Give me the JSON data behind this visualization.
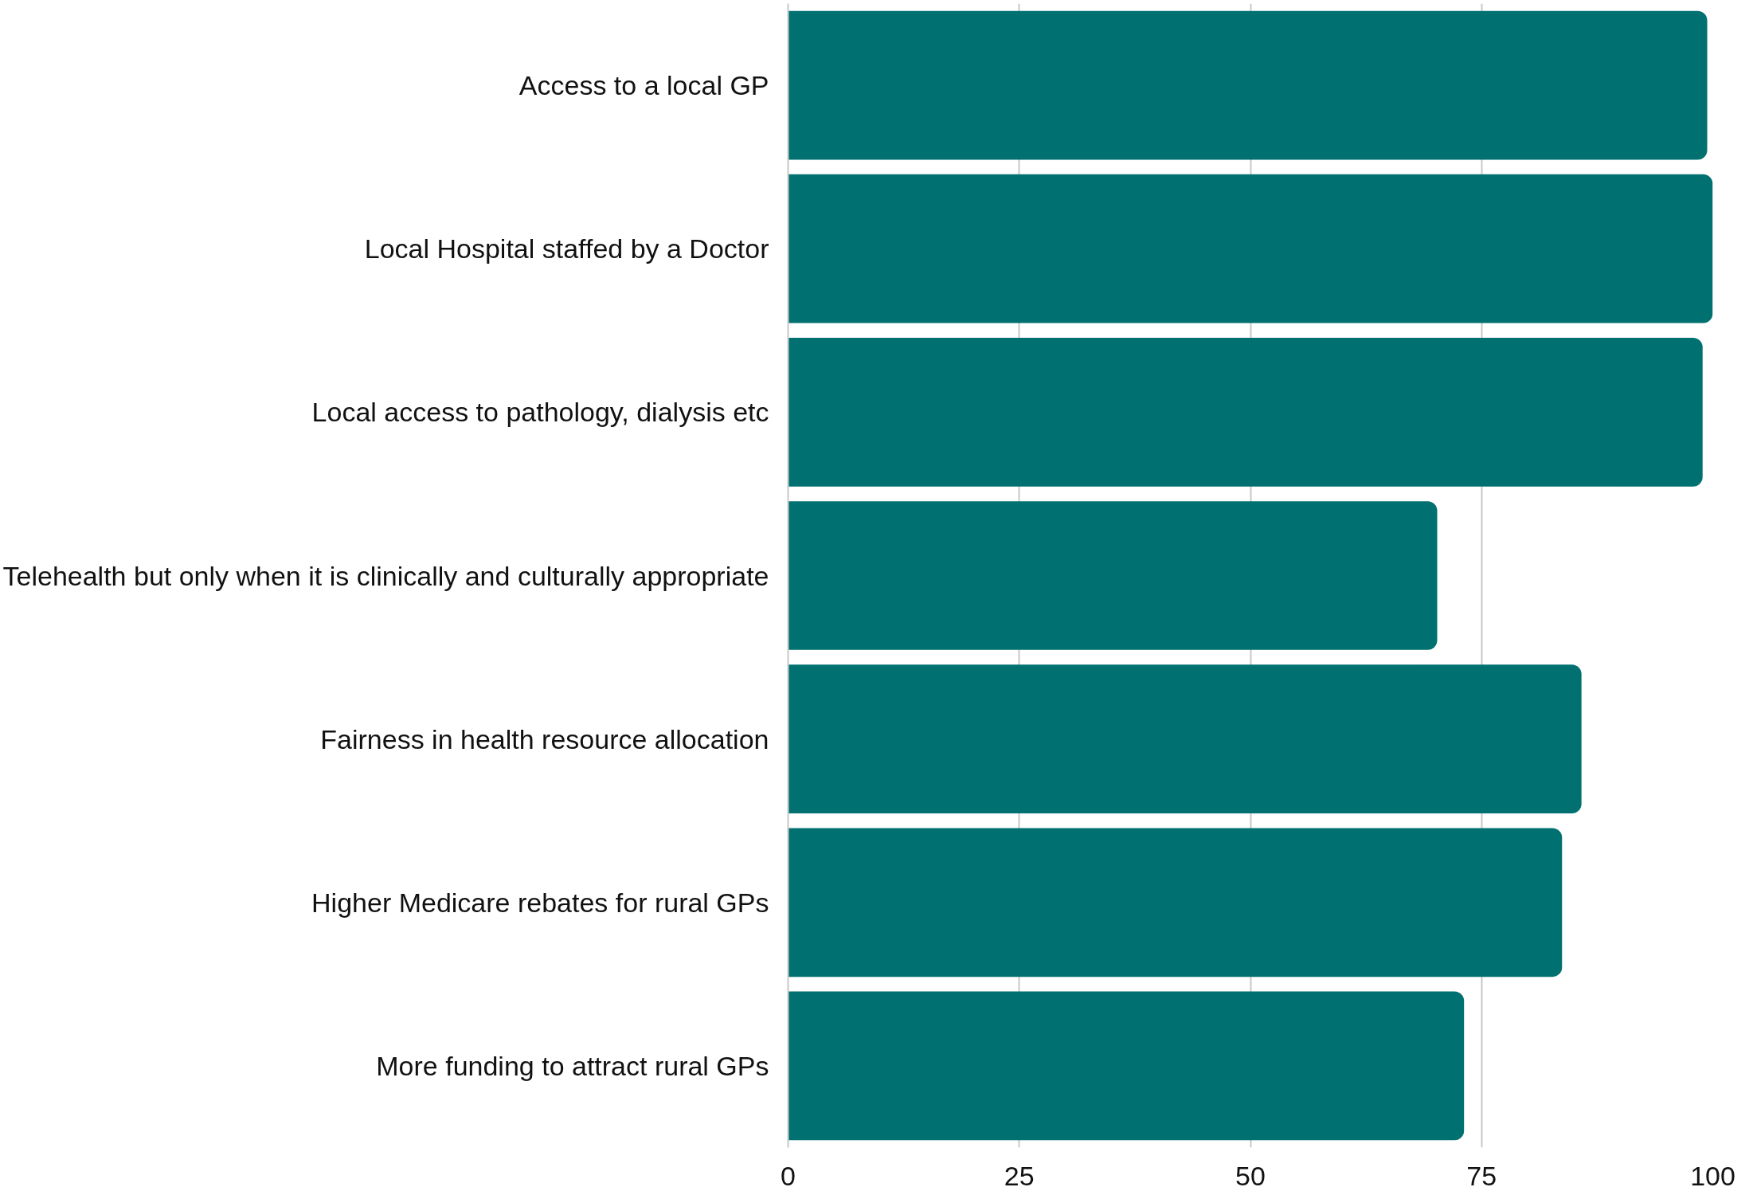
{
  "chart_data": {
    "type": "bar",
    "orientation": "horizontal",
    "categories": [
      "Access to a local GP",
      "Local Hospital staffed by a Doctor",
      "Local access to pathology, dialysis etc",
      "Telehealth but only when it is clinically and culturally appropriate",
      "Fairness in health resource allocation",
      "Higher Medicare rebates for rural GPs",
      "More funding to attract rural GPs"
    ],
    "values": [
      99.4,
      100,
      98.9,
      70.2,
      85.8,
      83.7,
      73.1
    ],
    "color": "#007070",
    "xlim": [
      0,
      100
    ],
    "xticks": [
      0,
      25,
      50,
      75,
      100
    ],
    "grid": "x"
  }
}
